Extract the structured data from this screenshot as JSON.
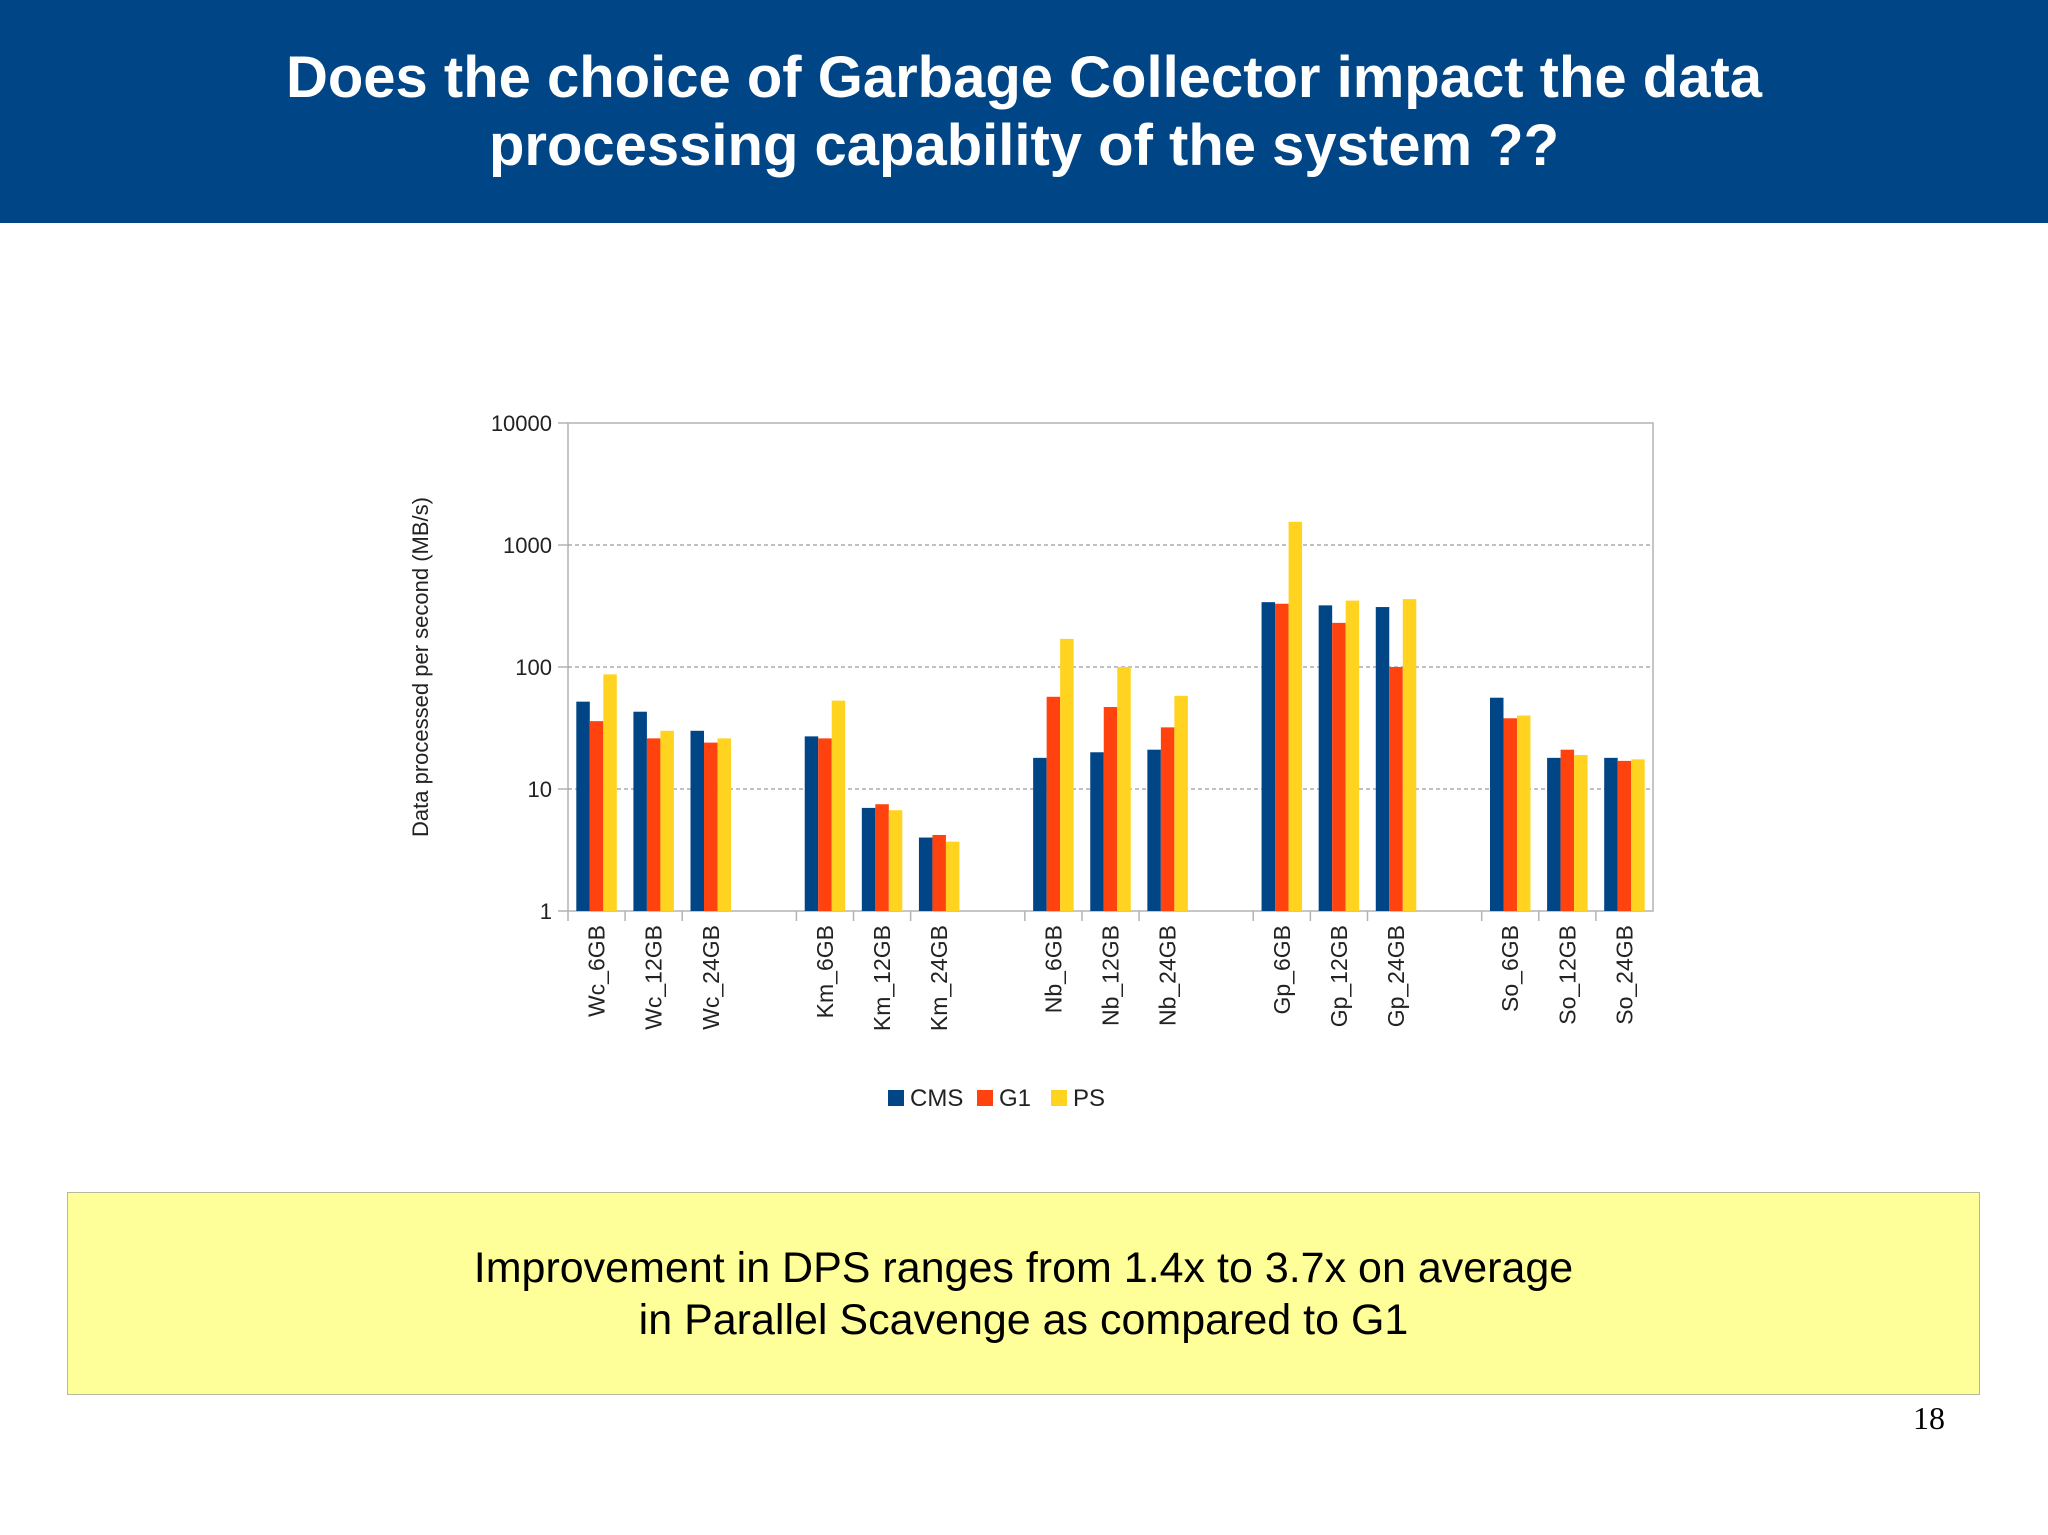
{
  "slide": {
    "title_line1": "Does the choice of Garbage Collector impact the data",
    "title_line2": "processing capability of the system ??",
    "callout_line1": "Improvement in DPS ranges from 1.4x to 3.7x on average",
    "callout_line2": "in Parallel Scavenge as compared to G1",
    "page_number": "18",
    "header_color": "#004586",
    "callout_color": "#ffff99"
  },
  "chart_data": {
    "type": "bar",
    "title": "",
    "xlabel": "",
    "ylabel": "Data processed per second (MB/s)",
    "yscale": "log",
    "ylim": [
      1,
      10000
    ],
    "yticks": [
      "1",
      "10",
      "100",
      "1000",
      "10000"
    ],
    "grid": "horizontal dashed",
    "legend_position": "bottom",
    "categories": [
      "Wc_6GB",
      "Wc_12GB",
      "Wc_24GB",
      "Km_6GB",
      "Km_12GB",
      "Km_24GB",
      "Nb_6GB",
      "Nb_12GB",
      "Nb_24GB",
      "Gp_6GB",
      "Gp_12GB",
      "Gp_24GB",
      "So_6GB",
      "So_12GB",
      "So_24GB"
    ],
    "groups": [
      3,
      3,
      3,
      3,
      3
    ],
    "series": [
      {
        "name": "CMS",
        "color": "#004586",
        "values": [
          52,
          43,
          30,
          27,
          7,
          4,
          18,
          20,
          21,
          340,
          320,
          310,
          56,
          18,
          18
        ]
      },
      {
        "name": "G1",
        "color": "#ff420e",
        "values": [
          36,
          26,
          24,
          26,
          7.5,
          4.2,
          57,
          47,
          32,
          330,
          230,
          100,
          38,
          21,
          17
        ]
      },
      {
        "name": "PS",
        "color": "#ffd320",
        "values": [
          87,
          30,
          26,
          53,
          6.7,
          3.7,
          170,
          100,
          58,
          1550,
          350,
          360,
          40,
          19,
          17.5
        ]
      }
    ]
  }
}
